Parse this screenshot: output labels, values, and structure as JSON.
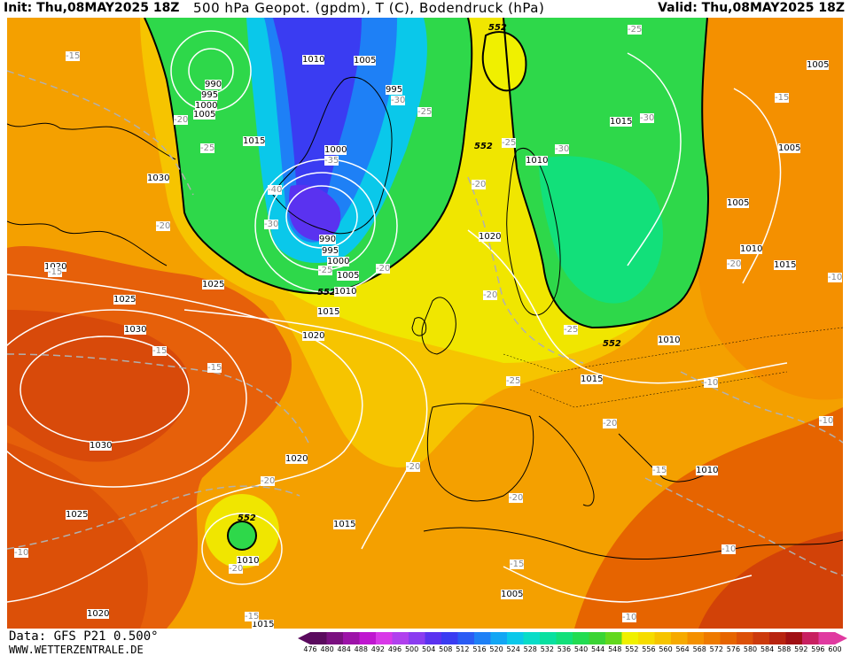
{
  "header": {
    "init": "Init: Thu,08MAY2025 18Z",
    "title": "500 hPa Geopot. (gpdm), T (C), Bodendruck (hPa)",
    "valid": "Valid: Thu,08MAY2025 18Z"
  },
  "footer": {
    "source": "Data: GFS P21 0.500°",
    "url": "WWW.WETTERZENTRALE.DE"
  },
  "legend": {
    "ticks": [
      "476",
      "480",
      "484",
      "488",
      "492",
      "496",
      "500",
      "504",
      "508",
      "512",
      "516",
      "520",
      "524",
      "528",
      "532",
      "536",
      "540",
      "544",
      "548",
      "552",
      "556",
      "560",
      "564",
      "568",
      "572",
      "576",
      "580",
      "584",
      "588",
      "592",
      "596",
      "600"
    ],
    "colors": [
      "#5a0a5e",
      "#7a1080",
      "#9c12a8",
      "#bf16d0",
      "#d838e8",
      "#b040ee",
      "#8a3cf0",
      "#5a32f0",
      "#3a3cf2",
      "#2a5cf4",
      "#1e80f6",
      "#12a6f4",
      "#0ac8ea",
      "#08dcc8",
      "#08e0a0",
      "#12e07a",
      "#22dc52",
      "#3ad434",
      "#62d81e",
      "#f0f000",
      "#f6dc00",
      "#f6c400",
      "#f6aa00",
      "#f49000",
      "#ee7a00",
      "#e66400",
      "#dc5008",
      "#cc3a0c",
      "#b82410",
      "#a01014",
      "#c82060",
      "#e03aa0"
    ]
  },
  "contours": {
    "geopotential": [
      {
        "text": "552"
      },
      {
        "text": "552"
      },
      {
        "text": "552"
      },
      {
        "text": "552"
      },
      {
        "text": "552"
      }
    ],
    "pressure": [
      {
        "text": "1010"
      },
      {
        "text": "1005"
      },
      {
        "text": "990"
      },
      {
        "text": "995"
      },
      {
        "text": "1000"
      },
      {
        "text": "1005"
      },
      {
        "text": "995"
      },
      {
        "text": "1015"
      },
      {
        "text": "1000"
      },
      {
        "text": "1030"
      },
      {
        "text": "990"
      },
      {
        "text": "995"
      },
      {
        "text": "1000"
      },
      {
        "text": "1005"
      },
      {
        "text": "1010"
      },
      {
        "text": "1015"
      },
      {
        "text": "1020"
      },
      {
        "text": "1020"
      },
      {
        "text": "1025"
      },
      {
        "text": "1025"
      },
      {
        "text": "1030"
      },
      {
        "text": "1030"
      },
      {
        "text": "1020"
      },
      {
        "text": "1025"
      },
      {
        "text": "1015"
      },
      {
        "text": "1010"
      },
      {
        "text": "1020"
      },
      {
        "text": "1020"
      },
      {
        "text": "1015"
      },
      {
        "text": "1015"
      },
      {
        "text": "1010"
      },
      {
        "text": "1010"
      },
      {
        "text": "1005"
      },
      {
        "text": "1005"
      },
      {
        "text": "1010"
      },
      {
        "text": "1015"
      },
      {
        "text": "1005"
      },
      {
        "text": "1005"
      },
      {
        "text": "1015"
      },
      {
        "text": "1010"
      }
    ],
    "temperature": [
      {
        "text": "-15"
      },
      {
        "text": "-20"
      },
      {
        "text": "-25"
      },
      {
        "text": "-30"
      },
      {
        "text": "-35"
      },
      {
        "text": "-40"
      },
      {
        "text": "-30"
      },
      {
        "text": "-25"
      },
      {
        "text": "-20"
      },
      {
        "text": "-25"
      },
      {
        "text": "-20"
      },
      {
        "text": "-25"
      },
      {
        "text": "-30"
      },
      {
        "text": "-25"
      },
      {
        "text": "-30"
      },
      {
        "text": "-15"
      },
      {
        "text": "-20"
      },
      {
        "text": "-20"
      },
      {
        "text": "-15"
      },
      {
        "text": "-15"
      },
      {
        "text": "-20"
      },
      {
        "text": "-20"
      },
      {
        "text": "-25"
      },
      {
        "text": "-25"
      },
      {
        "text": "-20"
      },
      {
        "text": "-20"
      },
      {
        "text": "-20"
      },
      {
        "text": "-20"
      },
      {
        "text": "-10"
      },
      {
        "text": "-10"
      },
      {
        "text": "-15"
      },
      {
        "text": "-15"
      },
      {
        "text": "-10"
      },
      {
        "text": "-10"
      },
      {
        "text": "-15"
      },
      {
        "text": "-10"
      },
      {
        "text": "-10"
      },
      {
        "text": "-15"
      }
    ]
  }
}
